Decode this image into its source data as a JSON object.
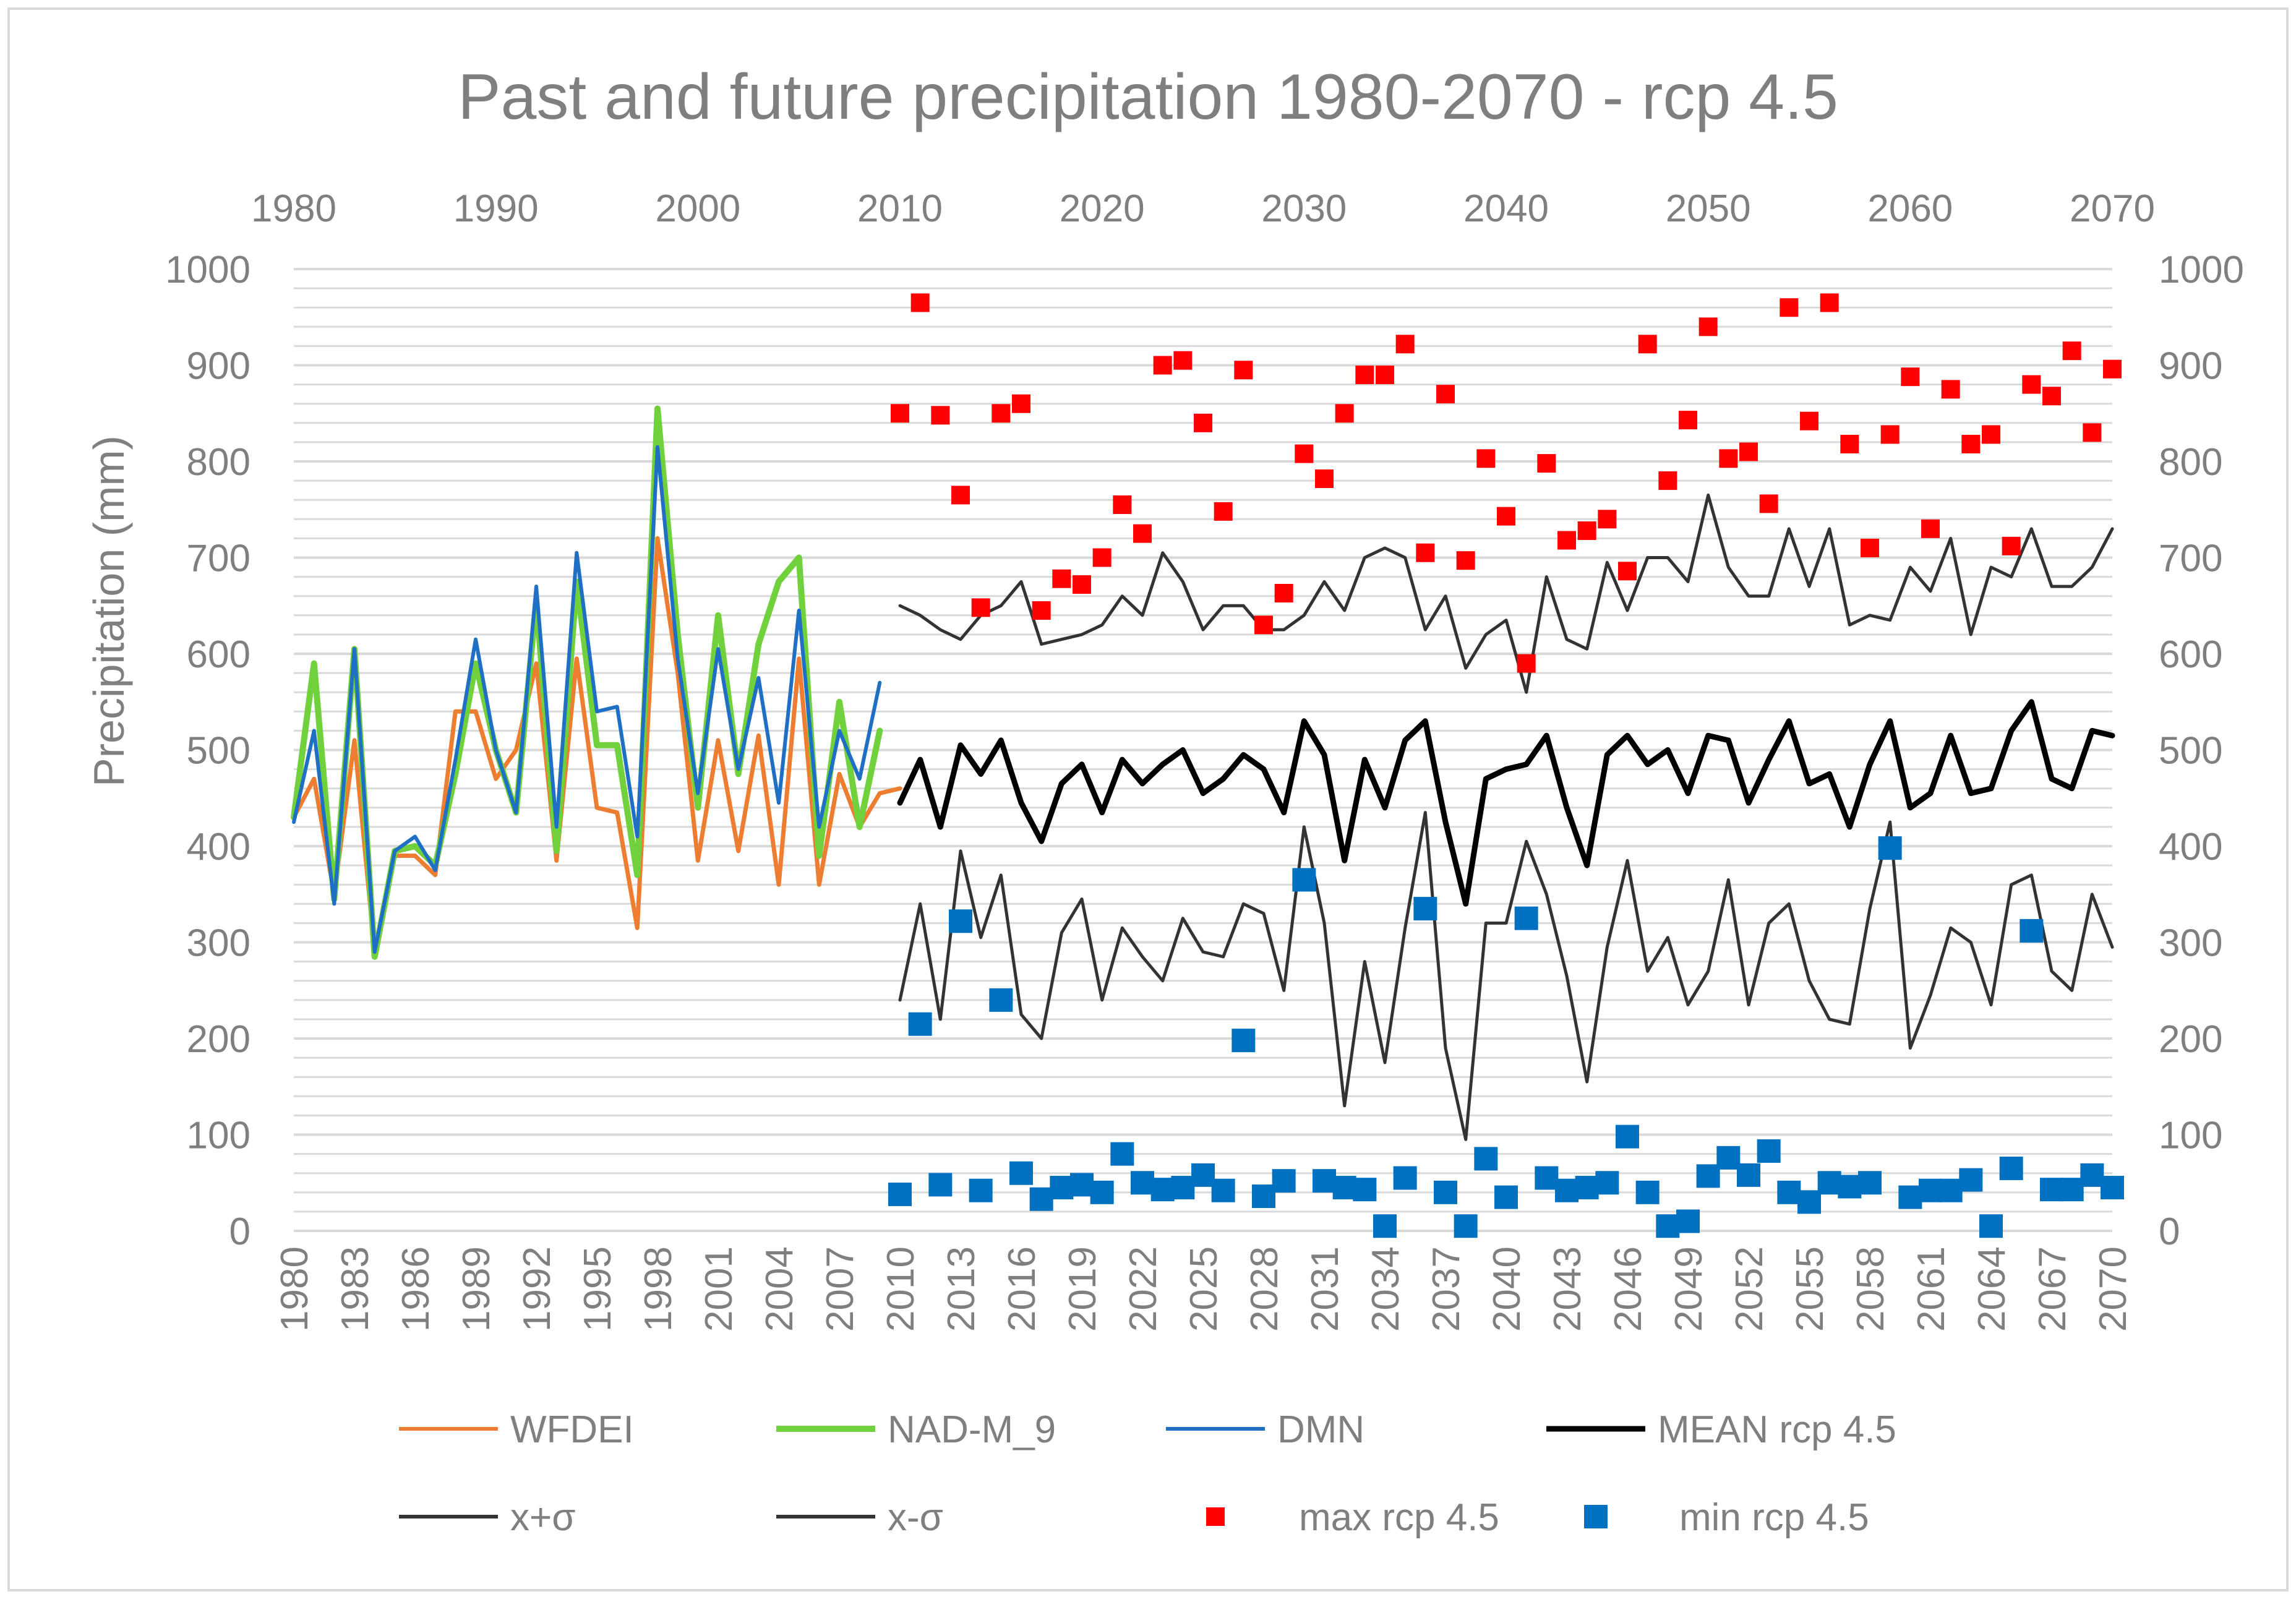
{
  "chart_data": {
    "type": "line",
    "title": "Past and future precipitation 1980-2070 - rcp 4.5",
    "ylabel": "Precipitation (mm)",
    "xlabel": "",
    "ylim": [
      0,
      1000
    ],
    "yticks": [
      "0",
      "100",
      "200",
      "300",
      "400",
      "500",
      "600",
      "700",
      "800",
      "900",
      "1000"
    ],
    "top_axis_range": [
      1980,
      2070
    ],
    "top_xticks": [
      "1980",
      "1990",
      "2000",
      "2010",
      "2020",
      "2030",
      "2040",
      "2050",
      "2060",
      "2070"
    ],
    "bottom_xticks": [
      "1980",
      "1983",
      "1986",
      "1989",
      "1992",
      "1995",
      "1998",
      "2001",
      "2004",
      "2007",
      "2010",
      "2013",
      "2016",
      "2019",
      "2022",
      "2025",
      "2028",
      "2031",
      "2034",
      "2037",
      "2040",
      "2043",
      "2046",
      "2049",
      "2052",
      "2055",
      "2058",
      "2061",
      "2064",
      "2067",
      "2070"
    ],
    "grid": true,
    "legend_position": "bottom",
    "colors": {
      "wfdei": "#ED7D31",
      "nad": "#70D13D",
      "dmn": "#1F6FC4",
      "mean": "#000000",
      "sigma": "#333333",
      "max": "#FF0000",
      "min": "#0070C0",
      "text": "#7F7F7F",
      "grid": "#D9D9D9"
    },
    "legend": [
      {
        "key": "wfdei",
        "label": "WFDEI",
        "style": "line"
      },
      {
        "key": "nad",
        "label": "NAD-M_9",
        "style": "line"
      },
      {
        "key": "dmn",
        "label": "DMN",
        "style": "line"
      },
      {
        "key": "mean",
        "label": "MEAN rcp 4.5",
        "style": "line"
      },
      {
        "key": "plus",
        "label": "x+σ",
        "style": "line"
      },
      {
        "key": "minus",
        "label": "x-σ",
        "style": "line"
      },
      {
        "key": "max",
        "label": "max rcp 4.5",
        "style": "marker"
      },
      {
        "key": "min",
        "label": "min rcp 4.5",
        "style": "marker"
      }
    ],
    "series": {
      "wfdei": {
        "start": 1980,
        "values": [
          430,
          470,
          350,
          510,
          290,
          390,
          390,
          370,
          540,
          540,
          470,
          500,
          590,
          385,
          595,
          440,
          435,
          315,
          720,
          580,
          385,
          510,
          395,
          515,
          360,
          595,
          360,
          475,
          420,
          455,
          460
        ]
      },
      "nad": {
        "start": 1980,
        "values": [
          430,
          590,
          345,
          605,
          285,
          395,
          400,
          380,
          475,
          590,
          500,
          435,
          655,
          395,
          675,
          505,
          505,
          370,
          855,
          620,
          440,
          640,
          475,
          610,
          675,
          700,
          390,
          550,
          420,
          520
        ]
      },
      "dmn": {
        "start": 1980,
        "values": [
          425,
          520,
          340,
          605,
          290,
          395,
          410,
          375,
          490,
          615,
          500,
          435,
          670,
          420,
          705,
          540,
          545,
          410,
          815,
          595,
          455,
          605,
          480,
          575,
          445,
          645,
          420,
          520,
          470,
          570
        ]
      },
      "mean": {
        "start": 2010,
        "values": [
          445,
          490,
          420,
          505,
          475,
          510,
          445,
          405,
          465,
          485,
          435,
          490,
          465,
          485,
          500,
          455,
          470,
          495,
          480,
          435,
          530,
          495,
          385,
          490,
          440,
          510,
          530,
          425,
          340,
          470,
          480,
          485,
          515,
          440,
          380,
          495,
          515,
          485,
          500,
          455,
          515,
          510,
          445,
          490,
          530,
          465,
          475,
          420,
          485,
          530,
          440,
          455,
          515,
          455,
          460,
          520,
          550,
          470,
          460,
          520,
          515
        ]
      },
      "plus": {
        "start": 2010,
        "values": [
          650,
          640,
          625,
          615,
          640,
          650,
          675,
          610,
          615,
          620,
          630,
          660,
          640,
          705,
          675,
          625,
          650,
          650,
          625,
          625,
          640,
          675,
          645,
          700,
          710,
          700,
          625,
          660,
          585,
          620,
          635,
          560,
          680,
          615,
          605,
          695,
          645,
          700,
          700,
          675,
          765,
          690,
          660,
          660,
          730,
          670,
          730,
          630,
          640,
          635,
          690,
          665,
          720,
          620,
          690,
          680,
          730,
          670,
          670,
          690,
          730
        ]
      },
      "minus": {
        "start": 2010,
        "values": [
          240,
          340,
          220,
          395,
          305,
          370,
          225,
          200,
          310,
          345,
          240,
          315,
          285,
          260,
          325,
          290,
          285,
          340,
          330,
          250,
          420,
          320,
          130,
          280,
          175,
          315,
          435,
          190,
          95,
          320,
          320,
          405,
          350,
          265,
          155,
          295,
          385,
          270,
          305,
          235,
          270,
          365,
          235,
          320,
          340,
          260,
          220,
          215,
          335,
          425,
          190,
          245,
          315,
          300,
          235,
          360,
          370,
          270,
          250,
          350,
          295
        ]
      },
      "max": {
        "start": 2010,
        "values": [
          850,
          965,
          848,
          765,
          648,
          850,
          860,
          645,
          678,
          672,
          700,
          755,
          725,
          900,
          905,
          840,
          748,
          895,
          630,
          663,
          808,
          782,
          850,
          890,
          890,
          922,
          705,
          870,
          697,
          803,
          743,
          590,
          798,
          718,
          728,
          740,
          686,
          922,
          780,
          843,
          940,
          803,
          810,
          756,
          960,
          842,
          965,
          818,
          710,
          828,
          888,
          730,
          875,
          818,
          828,
          712,
          880,
          868,
          915,
          830,
          896
        ]
      },
      "min": {
        "start": 2010,
        "values": [
          38,
          215,
          48,
          322,
          42,
          240,
          60,
          33,
          45,
          48,
          40,
          80,
          50,
          43,
          45,
          58,
          42,
          198,
          36,
          52,
          365,
          52,
          45,
          43,
          5,
          55,
          335,
          40,
          5,
          75,
          35,
          325,
          55,
          42,
          45,
          50,
          98,
          40,
          5,
          10,
          57,
          76,
          58,
          83,
          40,
          30,
          50,
          46,
          50,
          398,
          35,
          42,
          42,
          53,
          5,
          65,
          312,
          43,
          43,
          58,
          45
        ]
      }
    }
  }
}
